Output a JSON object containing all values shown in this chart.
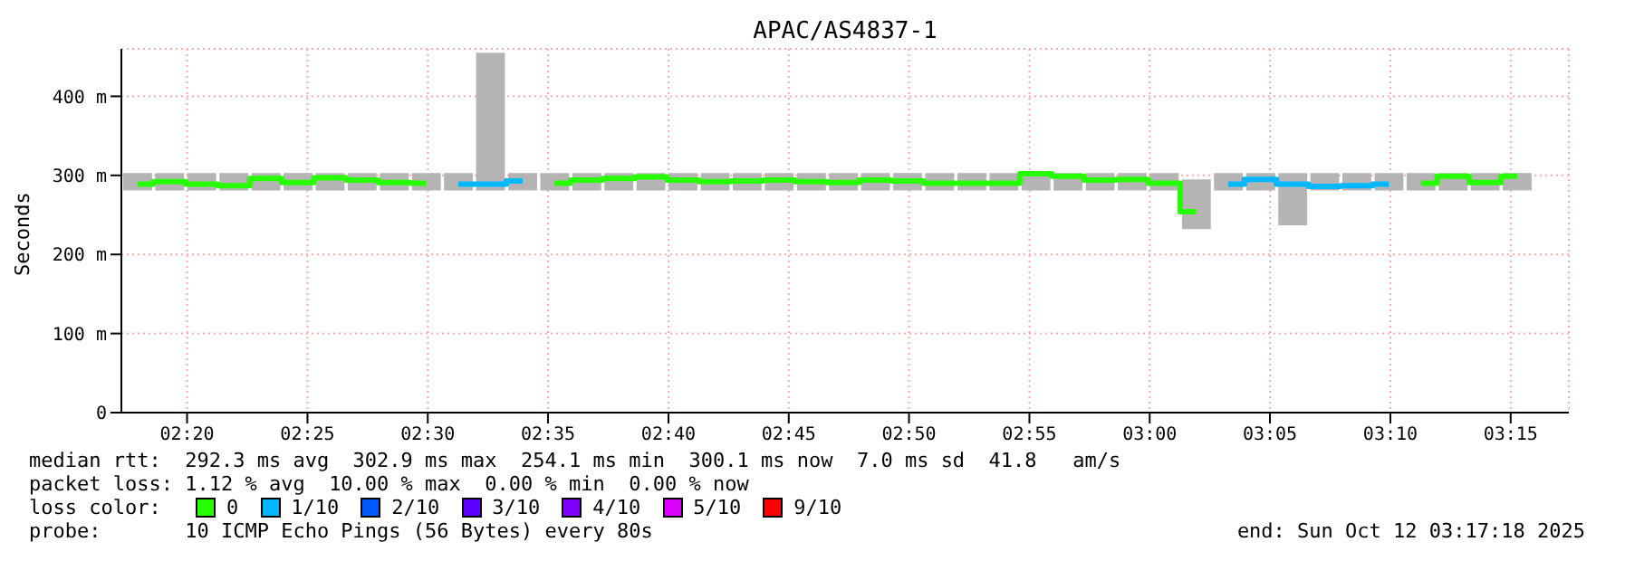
{
  "chart_data": {
    "type": "step",
    "title": "APAC/AS4837-1",
    "ylabel": "Seconds",
    "x": [
      2.2989,
      2.3211,
      2.3433,
      2.3656,
      2.3878,
      2.41,
      2.4322,
      2.4544,
      2.4767,
      2.4989,
      2.5211,
      2.5433,
      2.5656,
      2.5878,
      2.61,
      2.6322,
      2.6544,
      2.6767,
      2.6989,
      2.7211,
      2.7433,
      2.7656,
      2.7878,
      2.81,
      2.8322,
      2.8544,
      2.8767,
      2.8989,
      2.9211,
      2.9433,
      2.9656,
      2.9878,
      3.01,
      3.0322,
      3.0544,
      3.0767,
      3.0989,
      3.1211,
      3.1433,
      3.1656,
      3.1878,
      3.21,
      3.2322,
      3.2544
    ],
    "series": [
      {
        "type": "bar",
        "color": "#b4b4b4",
        "base": [
          281,
          281,
          281,
          281,
          281,
          281,
          281,
          281,
          281,
          281,
          281,
          281,
          281,
          281,
          281,
          281,
          281,
          281,
          281,
          281,
          281,
          281,
          281,
          281,
          281,
          281,
          281,
          281,
          281,
          281,
          281,
          281,
          281,
          232,
          281,
          281,
          237,
          281,
          281,
          281,
          281,
          281,
          281,
          281
        ],
        "values": [
          22,
          22,
          22,
          22,
          22,
          22,
          22,
          22,
          22,
          22,
          22,
          174,
          22,
          22,
          22,
          22,
          22,
          22,
          22,
          22,
          22,
          22,
          22,
          22,
          22,
          22,
          22,
          22,
          22,
          22,
          22,
          22,
          22,
          63,
          22,
          22,
          66,
          22,
          22,
          22,
          22,
          22,
          22,
          22
        ]
      },
      {
        "name": "0",
        "color": "#26ff00",
        "values": [
          289,
          292,
          289,
          287,
          296,
          291,
          297,
          294,
          291,
          290,
          null,
          null,
          null,
          290,
          294,
          296,
          298,
          294,
          292,
          293,
          294,
          292,
          291,
          294,
          293,
          290,
          290,
          290,
          302,
          299,
          294,
          295,
          290,
          254,
          null,
          null,
          null,
          null,
          null,
          null,
          290,
          299,
          291,
          299
        ]
      },
      {
        "name": "1/10",
        "color": "#00b8ff",
        "values": [
          null,
          null,
          null,
          null,
          null,
          null,
          null,
          null,
          null,
          null,
          289,
          289,
          293,
          null,
          null,
          null,
          null,
          null,
          null,
          null,
          null,
          null,
          null,
          null,
          null,
          null,
          null,
          null,
          null,
          null,
          null,
          null,
          null,
          null,
          289,
          295,
          289,
          286,
          287,
          289,
          null,
          null,
          null,
          null
        ]
      },
      {
        "name": "2/10",
        "color": "#0059ff",
        "values": [
          null,
          null,
          null,
          null,
          null,
          null,
          null,
          null,
          null,
          null,
          null,
          null,
          null,
          null,
          null,
          null,
          null,
          null,
          null,
          null,
          null,
          null,
          null,
          null,
          null,
          null,
          null,
          null,
          null,
          null,
          null,
          null,
          null,
          null,
          null,
          null,
          null,
          null,
          null,
          null,
          null,
          null,
          null,
          null
        ]
      },
      {
        "name": "3/10",
        "color": "#5e00ff",
        "values": [
          null,
          null,
          null,
          null,
          null,
          null,
          null,
          null,
          null,
          null,
          null,
          null,
          null,
          null,
          null,
          null,
          null,
          null,
          null,
          null,
          null,
          null,
          null,
          null,
          null,
          null,
          null,
          null,
          null,
          null,
          null,
          null,
          null,
          null,
          null,
          null,
          null,
          null,
          null,
          null,
          null,
          null,
          null,
          null
        ]
      },
      {
        "name": "4/10",
        "color": "#7e00ff",
        "values": [
          null,
          null,
          null,
          null,
          null,
          null,
          null,
          null,
          null,
          null,
          null,
          null,
          null,
          null,
          null,
          null,
          null,
          null,
          null,
          null,
          null,
          null,
          null,
          null,
          null,
          null,
          null,
          null,
          null,
          null,
          null,
          null,
          null,
          null,
          null,
          null,
          null,
          null,
          null,
          null,
          null,
          null,
          null,
          null
        ]
      },
      {
        "name": "5/10",
        "color": "#dd00ff",
        "values": [
          null,
          null,
          null,
          null,
          null,
          null,
          null,
          null,
          null,
          null,
          null,
          null,
          null,
          null,
          null,
          null,
          null,
          null,
          null,
          null,
          null,
          null,
          null,
          null,
          null,
          null,
          null,
          null,
          null,
          null,
          null,
          null,
          null,
          null,
          null,
          null,
          null,
          null,
          null,
          null,
          null,
          null,
          null,
          null
        ]
      },
      {
        "name": "9/10",
        "color": "#ff0000",
        "values": [
          null,
          null,
          null,
          null,
          null,
          null,
          null,
          null,
          null,
          null,
          null,
          null,
          null,
          null,
          null,
          null,
          null,
          null,
          null,
          null,
          null,
          null,
          null,
          null,
          null,
          null,
          null,
          null,
          null,
          null,
          null,
          null,
          null,
          null,
          null,
          null,
          null,
          null,
          null,
          null,
          null,
          null,
          null,
          null
        ]
      }
    ],
    "xlim": [
      2.2878,
      3.2903
    ],
    "xticks": [
      {
        "value": 2.3333,
        "label": "02:20"
      },
      {
        "value": 2.4167,
        "label": "02:25"
      },
      {
        "value": 2.5,
        "label": "02:30"
      },
      {
        "value": 2.5833,
        "label": "02:35"
      },
      {
        "value": 2.6667,
        "label": "02:40"
      },
      {
        "value": 2.75,
        "label": "02:45"
      },
      {
        "value": 2.8333,
        "label": "02:50"
      },
      {
        "value": 2.9167,
        "label": "02:55"
      },
      {
        "value": 3.0,
        "label": "03:00"
      },
      {
        "value": 3.0833,
        "label": "03:05"
      },
      {
        "value": 3.1667,
        "label": "03:10"
      },
      {
        "value": 3.25,
        "label": "03:15"
      }
    ],
    "ylim": [
      0,
      460
    ],
    "yticks": [
      0,
      {
        "value": 100,
        "label": "100 m"
      },
      {
        "value": 200,
        "label": "200 m"
      },
      {
        "value": 300,
        "label": "300 m"
      },
      {
        "value": 400,
        "label": "400 m"
      }
    ],
    "grid": true,
    "legend": "bottom",
    "legend_title": "loss color:",
    "annotations": [
      "median rtt:  292.3 ms avg  302.9 ms max  254.1 ms min  300.1 ms now  7.0 ms sd  41.8   am/s",
      "packet loss: 1.12 % avg  10.00 % max  0.00 % min  0.00 % now",
      "probe:       10 ICMP Echo Pings (56 Bytes) every 80s",
      "end: Sun Oct 12 03:17:18 2025"
    ]
  }
}
